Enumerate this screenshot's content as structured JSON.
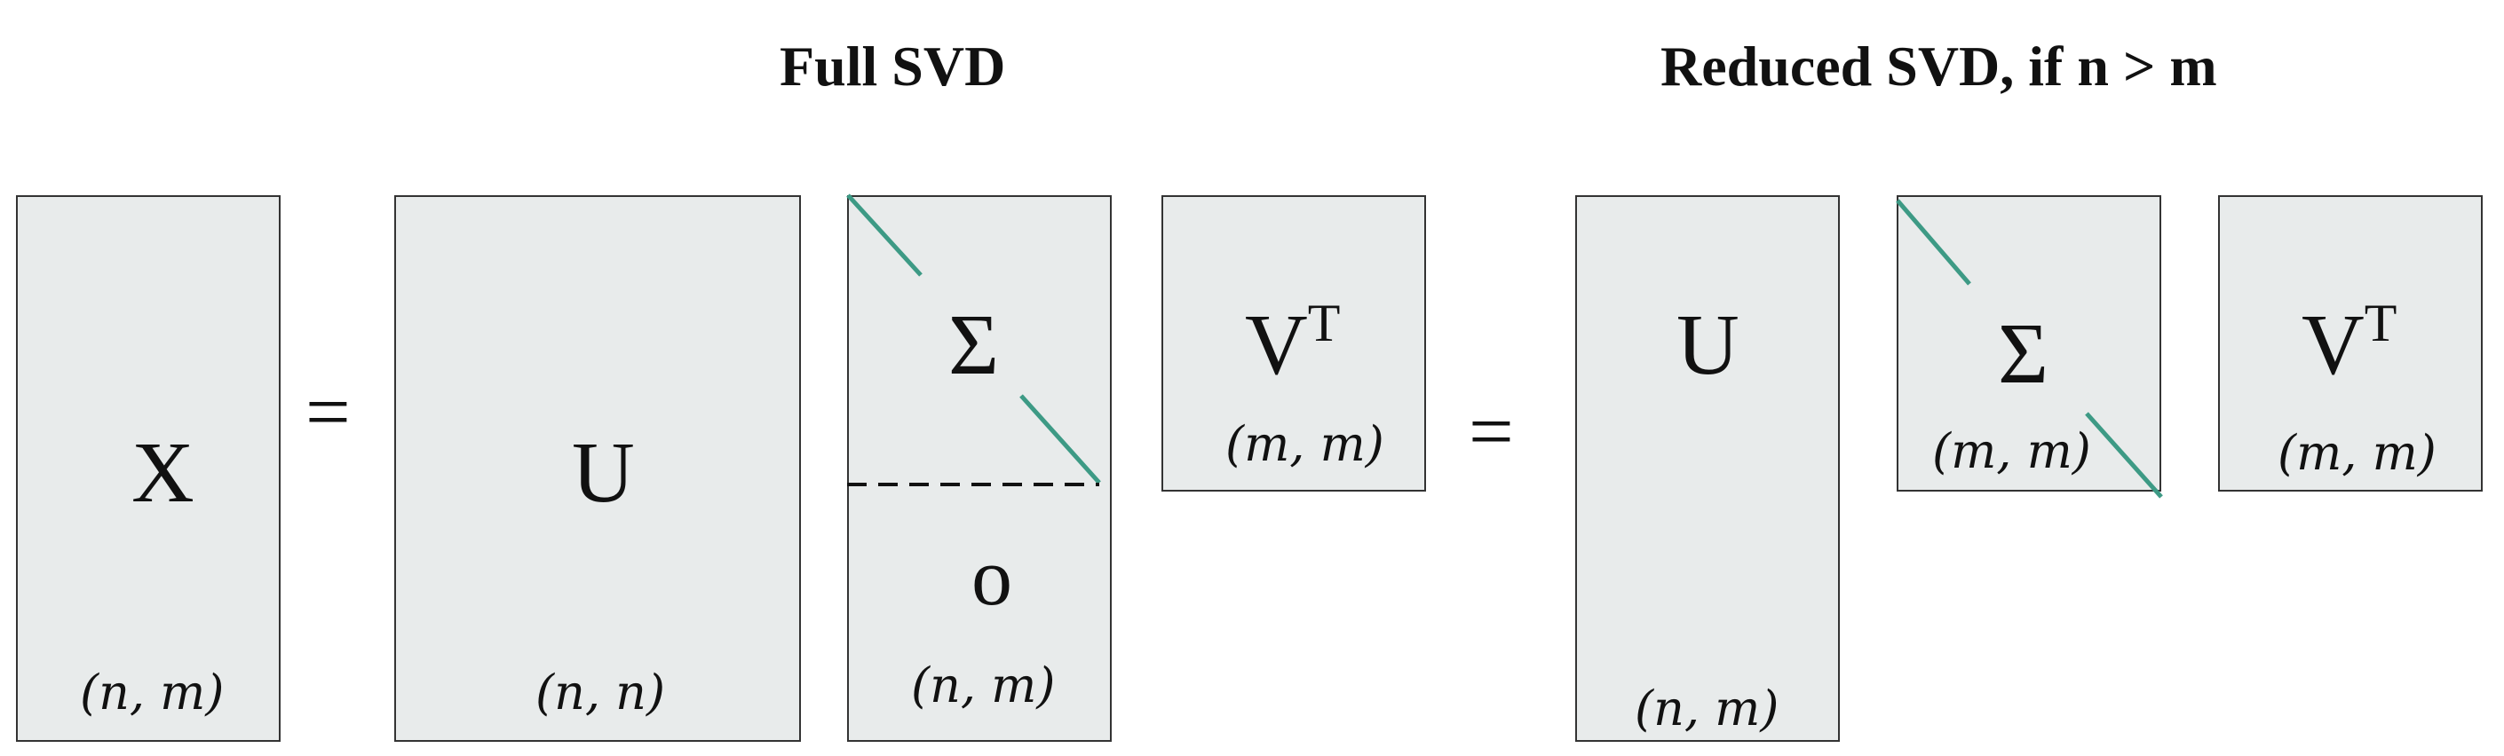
{
  "titles": {
    "full": "Full SVD",
    "reduced": "Reduced SVD, if n > m"
  },
  "full": {
    "x": {
      "symbol": "X",
      "dims": "(n, m)"
    },
    "equals": "=",
    "u": {
      "symbol": "U",
      "dims": "(n, n)"
    },
    "sigma": {
      "symbol": "Σ",
      "zero": "o",
      "dims": "(n, m)"
    },
    "vt": {
      "symbol": "V",
      "superscript": "T",
      "dims": "(m, m)"
    }
  },
  "reduced": {
    "equals": "=",
    "u": {
      "symbol": "U",
      "dims": "(n, m)"
    },
    "sigma": {
      "symbol": "Σ",
      "dims": "(m, m)"
    },
    "vt": {
      "symbol": "V",
      "superscript": "T",
      "dims": "(m, m)"
    }
  },
  "colors": {
    "box_fill": "#e8ebeb",
    "border": "#333333",
    "diagonal": "#3d9a85"
  }
}
